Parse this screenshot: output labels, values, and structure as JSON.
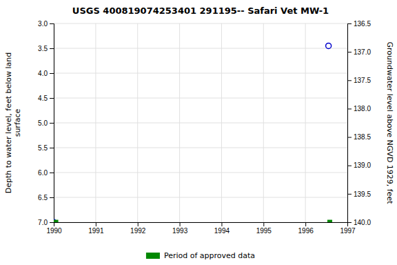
{
  "chart_data": {
    "type": "scatter",
    "title": "USGS 400819074253401 291195-- Safari Vet MW-1",
    "ylabel": "Depth to water level, feet below land\nsurface",
    "y2label": "Groundwater level above NGVD 1929, feet",
    "xlim": [
      1990,
      1997
    ],
    "xticks": [
      1990,
      1991,
      1992,
      1993,
      1994,
      1995,
      1996,
      1997
    ],
    "ylim": [
      7.0,
      3.0
    ],
    "yticks": [
      {
        "value": 3.0,
        "label": "3.0"
      },
      {
        "value": 3.5,
        "label": "3.5"
      },
      {
        "value": 4.0,
        "label": "4.0"
      },
      {
        "value": 4.5,
        "label": "4.5"
      },
      {
        "value": 5.0,
        "label": "5.0"
      },
      {
        "value": 5.5,
        "label": "5.5"
      },
      {
        "value": 6.0,
        "label": "6.0"
      },
      {
        "value": 6.5,
        "label": "6.5"
      },
      {
        "value": 7.0,
        "label": "7.0"
      }
    ],
    "y2lim": [
      140.0,
      136.5
    ],
    "y2ticks": [
      {
        "value": 140.0,
        "label": "140.0"
      },
      {
        "value": 139.5,
        "label": "139.5"
      },
      {
        "value": 139.0,
        "label": "139.0"
      },
      {
        "value": 138.5,
        "label": "138.5"
      },
      {
        "value": 138.0,
        "label": "138.0"
      },
      {
        "value": 137.5,
        "label": "137.5"
      },
      {
        "value": 137.0,
        "label": "137.0"
      },
      {
        "value": 136.5,
        "label": "136.5"
      }
    ],
    "grid": true,
    "legend": "bottom",
    "series": [
      {
        "color": "#0000cc",
        "marker": "circle",
        "x": [
          1996.55,
          1990.0
        ],
        "values": [
          3.45,
          7.0
        ]
      },
      {
        "name": "Period of approved data",
        "color": "#008800",
        "marker": "square",
        "x": [
          1996.58,
          1990.05
        ],
        "values": [
          7.0,
          7.0
        ]
      }
    ]
  }
}
